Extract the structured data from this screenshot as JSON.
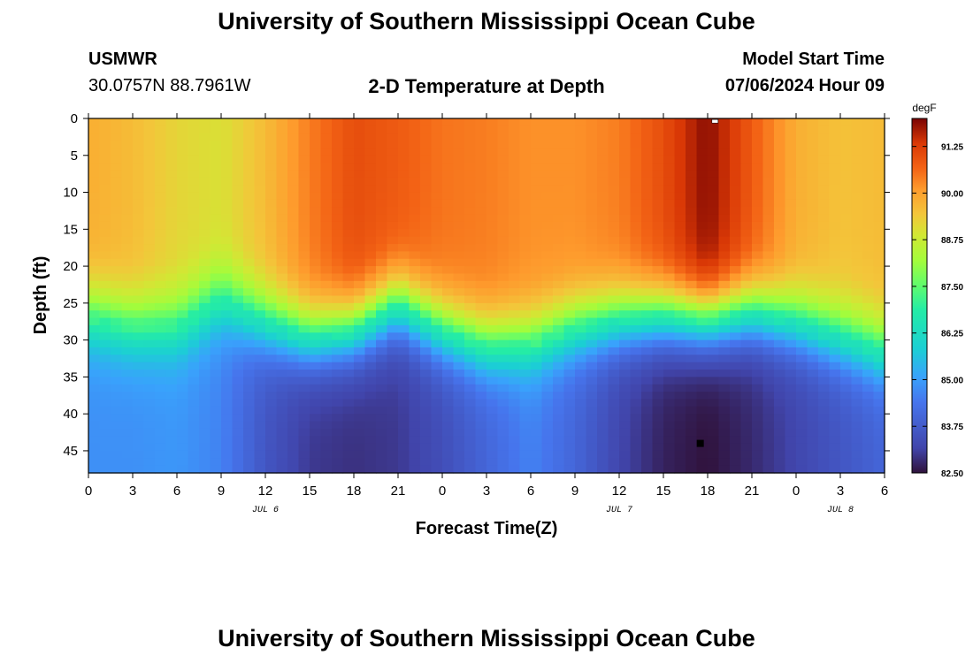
{
  "header": {
    "title": "University of Southern Mississippi Ocean Cube",
    "footer_title": "University of Southern Mississippi Ocean Cube",
    "station": "USMWR",
    "coords": "30.0757N  88.7961W",
    "plot_title": "2-D Temperature at Depth",
    "model_label": "Model Start Time",
    "model_time": "07/06/2024 Hour 09"
  },
  "chart_data": {
    "type": "heatmap",
    "title": "2-D Temperature at Depth",
    "xlabel": "Forecast Time(Z)",
    "ylabel": "Depth (ft)",
    "x_tick_labels": [
      "0",
      "3",
      "6",
      "9",
      "12",
      "15",
      "18",
      "21",
      "0",
      "3",
      "6",
      "9",
      "12",
      "15",
      "18",
      "21",
      "0",
      "3",
      "6"
    ],
    "x_hours": [
      0,
      3,
      6,
      9,
      12,
      15,
      18,
      21,
      24,
      27,
      30,
      33,
      36,
      39,
      42,
      45,
      48,
      51,
      54
    ],
    "x_range_hours": [
      0,
      54
    ],
    "date_labels": [
      {
        "label": "JUL 6",
        "hour": 12
      },
      {
        "label": "JUL 7",
        "hour": 36
      },
      {
        "label": "JUL 8",
        "hour": 51
      }
    ],
    "y_ticks": [
      0,
      5,
      10,
      15,
      20,
      25,
      30,
      35,
      40,
      45
    ],
    "y_range": [
      0,
      48
    ],
    "colorbar": {
      "unit": "degF",
      "min": 82.5,
      "max": 92.0,
      "tick_values": [
        82.5,
        83.75,
        85.0,
        86.25,
        87.5,
        88.75,
        90.0,
        91.25
      ],
      "tick_labels": [
        "82.50",
        "83.75",
        "85.00",
        "86.25",
        "87.50",
        "88.75",
        "90.00",
        "91.25"
      ]
    },
    "max_marker": {
      "hour": 42.5,
      "depth": 0.2,
      "color": "#ffffff"
    },
    "min_marker": {
      "hour": 41.5,
      "depth": 44,
      "color": "#000000"
    },
    "thermocline_depth_ft": [
      {
        "hour": 0,
        "depth": 27
      },
      {
        "hour": 3,
        "depth": 28.5
      },
      {
        "hour": 6,
        "depth": 28.5
      },
      {
        "hour": 9,
        "depth": 25
      },
      {
        "hour": 12,
        "depth": 28
      },
      {
        "hour": 15,
        "depth": 30
      },
      {
        "hour": 18,
        "depth": 29
      },
      {
        "hour": 21,
        "depth": 25.5
      },
      {
        "hour": 24,
        "depth": 29
      },
      {
        "hour": 27,
        "depth": 31
      },
      {
        "hour": 30,
        "depth": 30.5
      },
      {
        "hour": 33,
        "depth": 28.5
      },
      {
        "hour": 36,
        "depth": 27.5
      },
      {
        "hour": 39,
        "depth": 27
      },
      {
        "hour": 42,
        "depth": 27.5
      },
      {
        "hour": 45,
        "depth": 26.5
      },
      {
        "hour": 48,
        "depth": 28
      },
      {
        "hour": 51,
        "depth": 30
      },
      {
        "hour": 54,
        "depth": 32
      }
    ],
    "surface_temperature_degF": [
      {
        "hour": 0,
        "value": 89.8
      },
      {
        "hour": 3,
        "value": 89.6
      },
      {
        "hour": 6,
        "value": 89.2
      },
      {
        "hour": 9,
        "value": 89.0
      },
      {
        "hour": 12,
        "value": 89.6
      },
      {
        "hour": 15,
        "value": 90.4
      },
      {
        "hour": 18,
        "value": 91.0
      },
      {
        "hour": 21,
        "value": 90.8
      },
      {
        "hour": 24,
        "value": 90.5
      },
      {
        "hour": 27,
        "value": 90.4
      },
      {
        "hour": 30,
        "value": 90.2
      },
      {
        "hour": 33,
        "value": 90.2
      },
      {
        "hour": 36,
        "value": 90.4
      },
      {
        "hour": 39,
        "value": 91.0
      },
      {
        "hour": 42,
        "value": 91.9
      },
      {
        "hour": 45,
        "value": 90.8
      },
      {
        "hour": 48,
        "value": 89.8
      },
      {
        "hour": 51,
        "value": 89.5
      },
      {
        "hour": 54,
        "value": 89.6
      }
    ],
    "bottom_temperature_degF": [
      {
        "hour": 0,
        "value": 84.8
      },
      {
        "hour": 3,
        "value": 84.8
      },
      {
        "hour": 6,
        "value": 84.9
      },
      {
        "hour": 9,
        "value": 84.6
      },
      {
        "hour": 12,
        "value": 83.6
      },
      {
        "hour": 15,
        "value": 83.0
      },
      {
        "hour": 18,
        "value": 82.9
      },
      {
        "hour": 21,
        "value": 83.0
      },
      {
        "hour": 24,
        "value": 83.4
      },
      {
        "hour": 27,
        "value": 84.0
      },
      {
        "hour": 30,
        "value": 84.6
      },
      {
        "hour": 33,
        "value": 84.0
      },
      {
        "hour": 36,
        "value": 83.2
      },
      {
        "hour": 39,
        "value": 82.7
      },
      {
        "hour": 42,
        "value": 82.5
      },
      {
        "hour": 45,
        "value": 82.8
      },
      {
        "hour": 48,
        "value": 83.2
      },
      {
        "hour": 51,
        "value": 83.6
      },
      {
        "hour": 54,
        "value": 84.0
      }
    ]
  }
}
